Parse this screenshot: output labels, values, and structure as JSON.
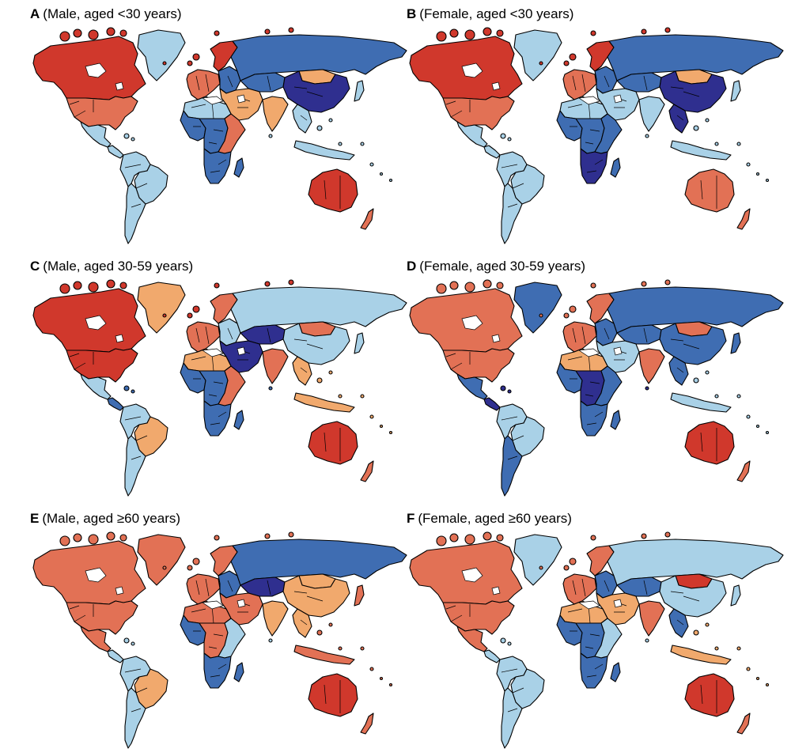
{
  "colors": {
    "c1": "#2f2f8f",
    "c2": "#3f6db2",
    "c3": "#a9d1e7",
    "c4": "#f1a96d",
    "c5": "#e27155",
    "c6": "#d0382c",
    "border": "#000000",
    "ocean": "#ffffff"
  },
  "panels": [
    {
      "letter": "A",
      "subtitle": "(Male, aged <30 years)",
      "regions": {
        "north_america": "c6",
        "usa": "c5",
        "mexico": "c3",
        "central_america": "c3",
        "greenland": "c3",
        "south_america": "c3",
        "brazil": "c3",
        "argentina": "c3",
        "western_europe": "c5",
        "scandinavia": "c6",
        "eastern_europe": "c2",
        "russia": "c2",
        "kazakhstan": "c2",
        "mongolia": "c4",
        "china": "c1",
        "india": "c4",
        "middle_east": "c4",
        "north_africa": "c3",
        "west_africa": "c2",
        "central_africa": "c2",
        "east_africa": "c5",
        "southern_africa": "c2",
        "madagascar": "c2",
        "southeast_asia": "c3",
        "indonesia": "c3",
        "australia": "c6",
        "new_zealand": "c5",
        "japan": "c3"
      }
    },
    {
      "letter": "B",
      "subtitle": "(Female, aged <30 years)",
      "regions": {
        "north_america": "c6",
        "usa": "c5",
        "mexico": "c3",
        "central_america": "c3",
        "greenland": "c3",
        "south_america": "c3",
        "brazil": "c3",
        "argentina": "c3",
        "western_europe": "c5",
        "scandinavia": "c6",
        "eastern_europe": "c2",
        "russia": "c2",
        "kazakhstan": "c2",
        "mongolia": "c4",
        "china": "c1",
        "india": "c3",
        "middle_east": "c3",
        "north_africa": "c3",
        "west_africa": "c2",
        "central_africa": "c2",
        "east_africa": "c2",
        "southern_africa": "c1",
        "madagascar": "c2",
        "southeast_asia": "c1",
        "indonesia": "c3",
        "australia": "c5",
        "new_zealand": "c5",
        "japan": "c3"
      }
    },
    {
      "letter": "C",
      "subtitle": "(Male, aged 30-59 years)",
      "regions": {
        "north_america": "c6",
        "usa": "c6",
        "mexico": "c3",
        "central_america": "c2",
        "greenland": "c4",
        "south_america": "c3",
        "brazil": "c4",
        "argentina": "c3",
        "western_europe": "c5",
        "scandinavia": "c5",
        "eastern_europe": "c3",
        "russia": "c3",
        "kazakhstan": "c1",
        "mongolia": "c5",
        "china": "c3",
        "india": "c5",
        "middle_east": "c1",
        "north_africa": "c4",
        "west_africa": "c2",
        "central_africa": "c2",
        "east_africa": "c5",
        "southern_africa": "c2",
        "madagascar": "c2",
        "southeast_asia": "c4",
        "indonesia": "c4",
        "australia": "c6",
        "new_zealand": "c5",
        "japan": "c3"
      }
    },
    {
      "letter": "D",
      "subtitle": "(Female, aged 30-59 years)",
      "regions": {
        "north_america": "c5",
        "usa": "c5",
        "mexico": "c2",
        "central_america": "c1",
        "greenland": "c2",
        "south_america": "c3",
        "brazil": "c3",
        "argentina": "c2",
        "western_europe": "c5",
        "scandinavia": "c5",
        "eastern_europe": "c2",
        "russia": "c2",
        "kazakhstan": "c2",
        "mongolia": "c5",
        "china": "c2",
        "india": "c5",
        "middle_east": "c3",
        "north_africa": "c4",
        "west_africa": "c2",
        "central_africa": "c1",
        "east_africa": "c2",
        "southern_africa": "c2",
        "madagascar": "c2",
        "southeast_asia": "c2",
        "indonesia": "c3",
        "australia": "c6",
        "new_zealand": "c5",
        "japan": "c2"
      }
    },
    {
      "letter": "E",
      "subtitle": "(Male, aged ≥60 years)",
      "regions": {
        "north_america": "c5",
        "usa": "c5",
        "mexico": "c5",
        "central_america": "c3",
        "greenland": "c5",
        "south_america": "c3",
        "brazil": "c4",
        "argentina": "c3",
        "western_europe": "c5",
        "scandinavia": "c5",
        "eastern_europe": "c2",
        "russia": "c2",
        "kazakhstan": "c1",
        "mongolia": "c4",
        "china": "c4",
        "india": "c4",
        "middle_east": "c5",
        "north_africa": "c5",
        "west_africa": "c2",
        "central_africa": "c5",
        "east_africa": "c3",
        "southern_africa": "c2",
        "madagascar": "c2",
        "southeast_asia": "c4",
        "indonesia": "c5",
        "australia": "c6",
        "new_zealand": "c5",
        "japan": "c5"
      }
    },
    {
      "letter": "F",
      "subtitle": "(Female, aged ≥60 years)",
      "regions": {
        "north_america": "c5",
        "usa": "c5",
        "mexico": "c5",
        "central_america": "c3",
        "greenland": "c3",
        "south_america": "c3",
        "brazil": "c3",
        "argentina": "c3",
        "western_europe": "c5",
        "scandinavia": "c5",
        "eastern_europe": "c2",
        "russia": "c3",
        "kazakhstan": "c2",
        "mongolia": "c6",
        "china": "c3",
        "india": "c5",
        "middle_east": "c4",
        "north_africa": "c4",
        "west_africa": "c2",
        "central_africa": "c2",
        "east_africa": "c3",
        "southern_africa": "c2",
        "madagascar": "c2",
        "southeast_asia": "c2",
        "indonesia": "c4",
        "australia": "c6",
        "new_zealand": "c5",
        "japan": "c3"
      }
    }
  ]
}
